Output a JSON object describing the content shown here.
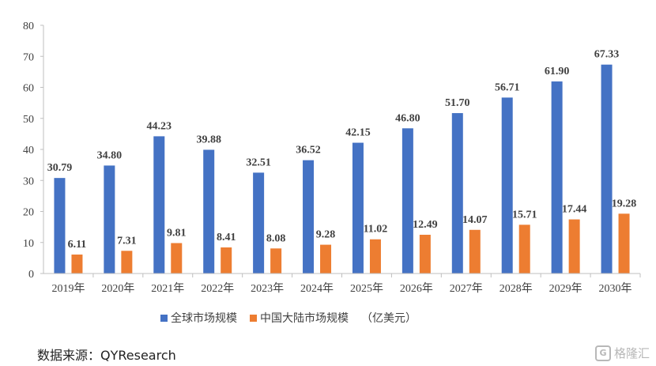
{
  "chart_data": {
    "type": "bar",
    "categories": [
      "2019年",
      "2020年",
      "2021年",
      "2022年",
      "2023年",
      "2024年",
      "2025年",
      "2026年",
      "2027年",
      "2028年",
      "2029年",
      "2030年"
    ],
    "series": [
      {
        "name": "全球市场规模",
        "color": "#4472C4",
        "values": [
          30.79,
          34.8,
          44.23,
          39.88,
          32.51,
          36.52,
          42.15,
          46.8,
          51.7,
          56.71,
          61.9,
          67.33
        ],
        "labels": [
          "30.79",
          "34.80",
          "44.23",
          "39.88",
          "32.51",
          "36.52",
          "42.15",
          "46.80",
          "51.70",
          "56.71",
          "61.90",
          "67.33"
        ]
      },
      {
        "name": "中国大陆市场规模",
        "color": "#ED7D31",
        "values": [
          6.11,
          7.31,
          9.81,
          8.41,
          8.08,
          9.28,
          11.02,
          12.49,
          14.07,
          15.71,
          17.44,
          19.28
        ],
        "labels": [
          "6.11",
          "7.31",
          "9.81",
          "8.41",
          "8.08",
          "9.28",
          "11.02",
          "12.49",
          "14.07",
          "15.71",
          "17.44",
          "19.28"
        ]
      }
    ],
    "ylim": [
      0,
      80
    ],
    "yticks": [
      "0",
      "10",
      "20",
      "30",
      "40",
      "50",
      "60",
      "70",
      "80"
    ],
    "unit_note": "（亿美元）",
    "legend_position": "bottom",
    "grid": false
  },
  "source": "数据来源：QYResearch",
  "watermark": {
    "logo": "G",
    "text": "格隆汇"
  }
}
